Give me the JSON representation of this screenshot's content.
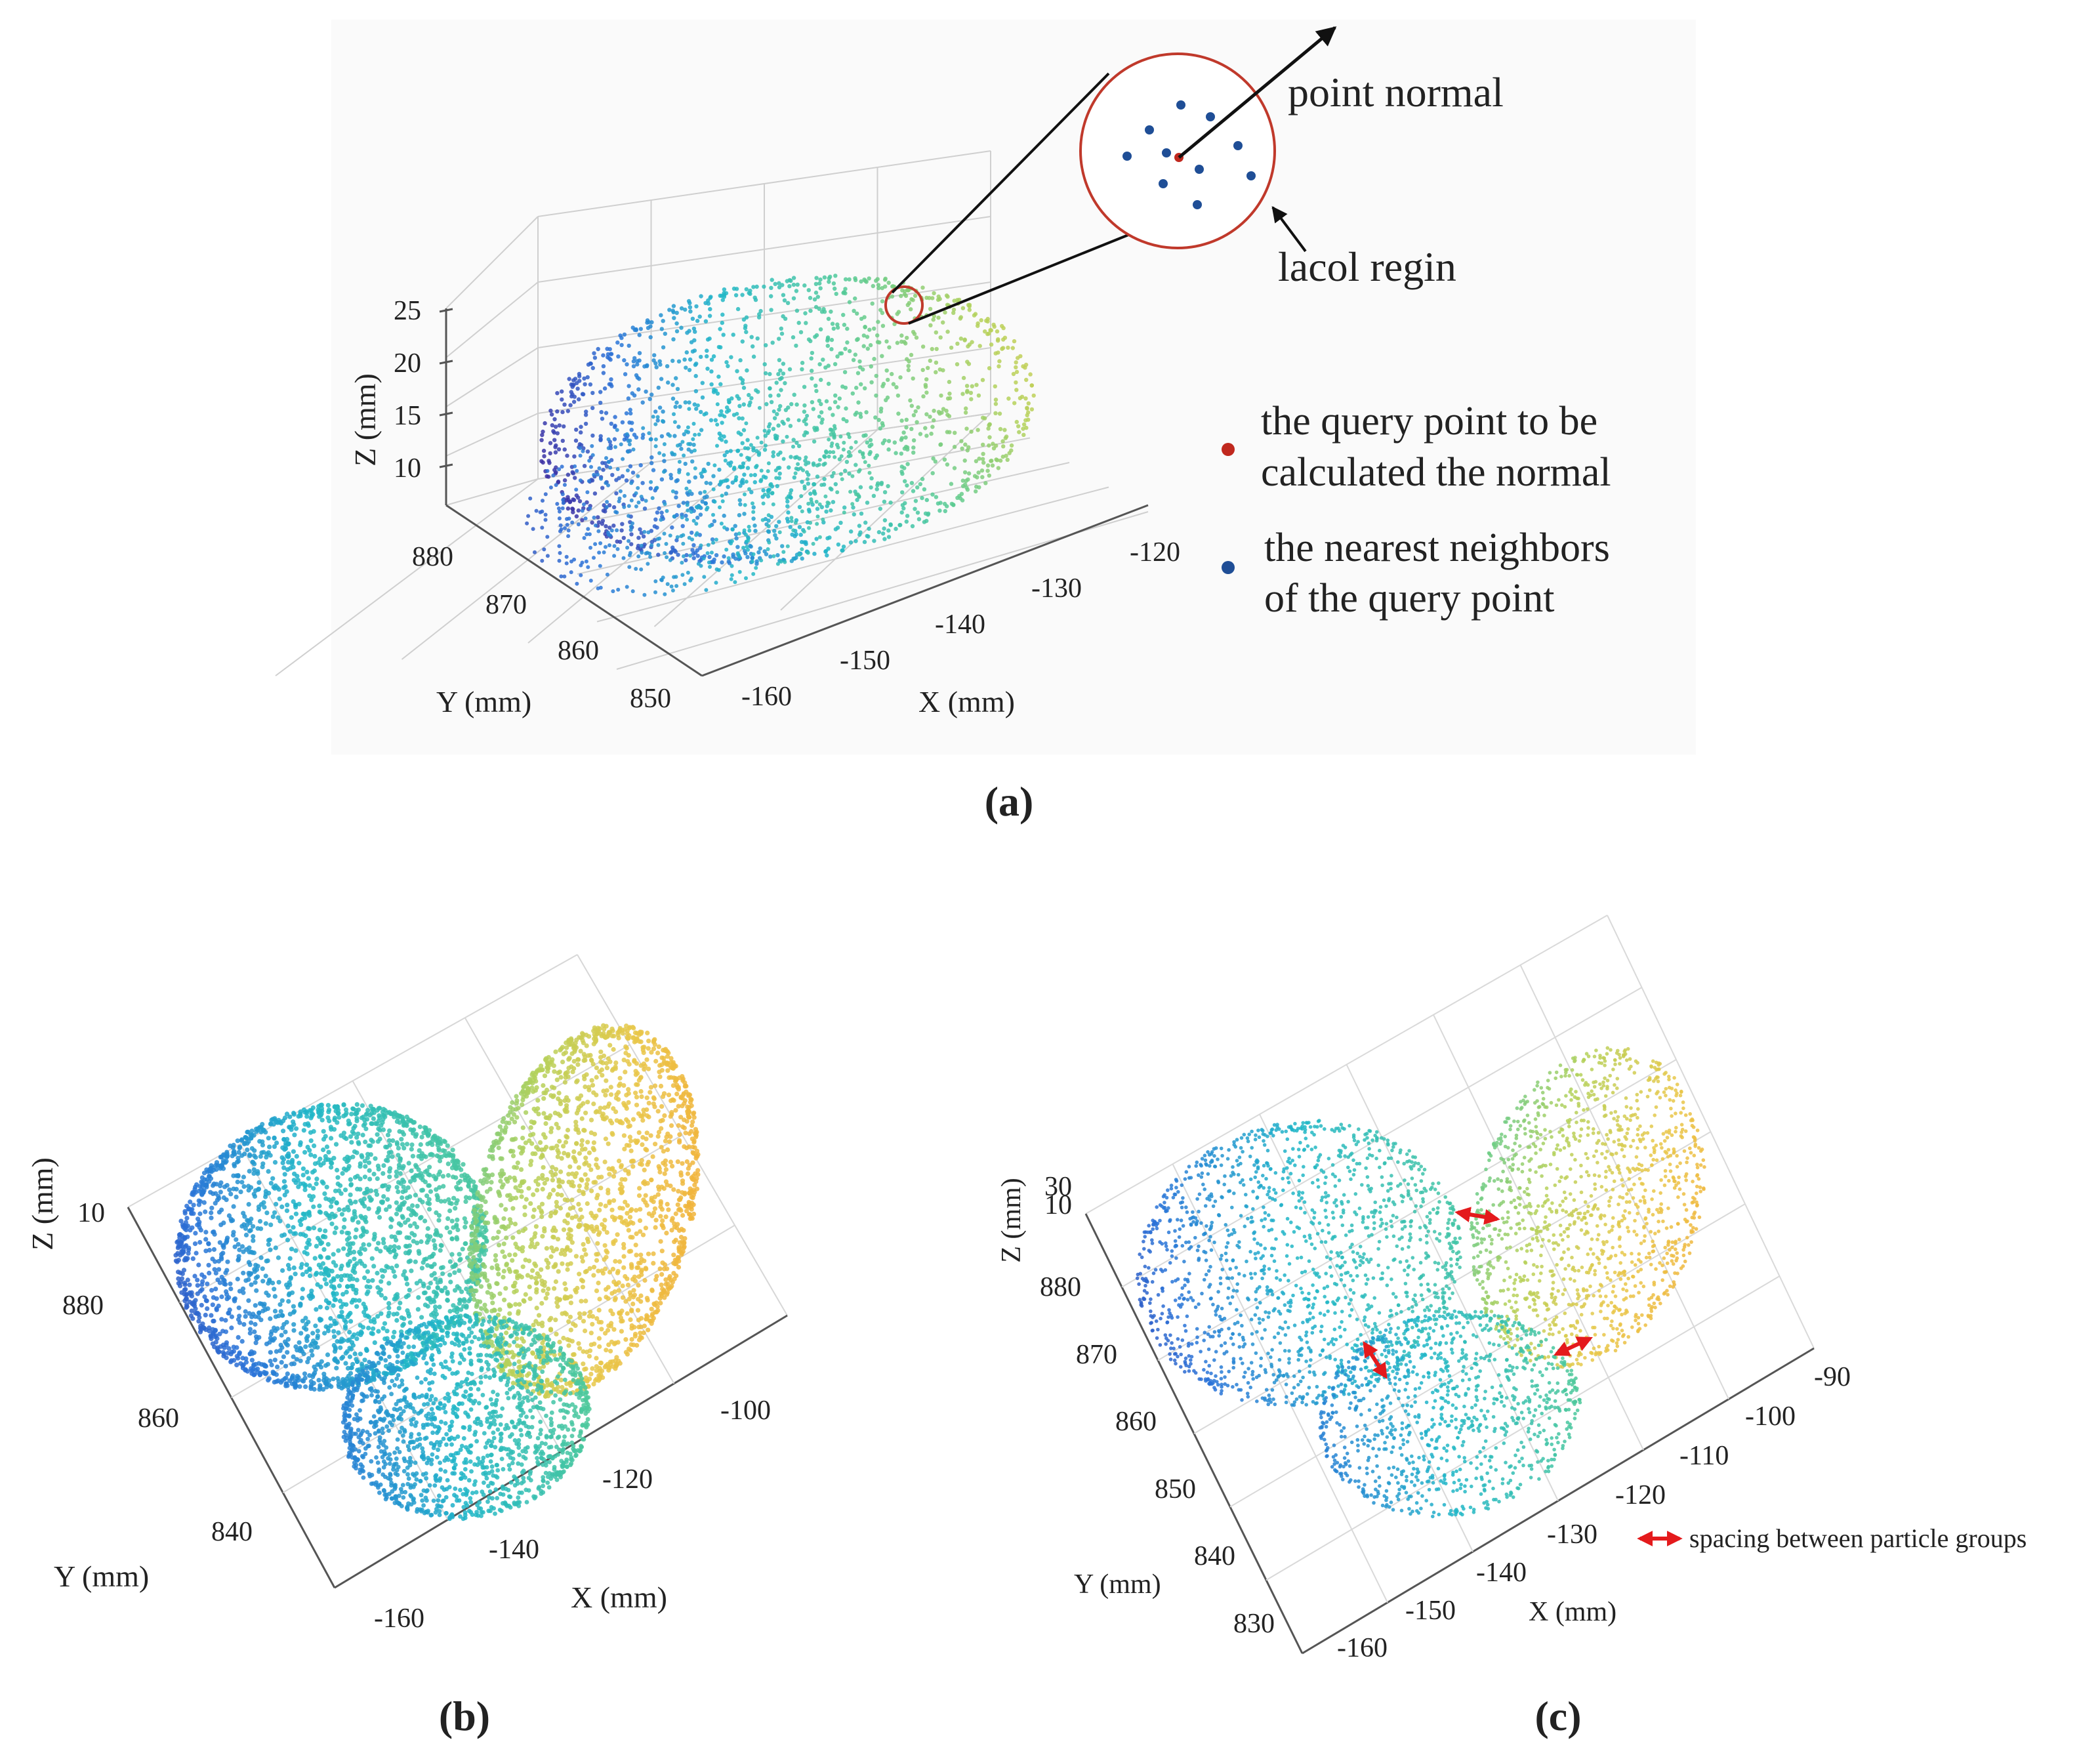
{
  "figure": {
    "panel_labels": [
      "(a)",
      "(b)",
      "(c)"
    ],
    "colors": {
      "query_point": "#c0281e",
      "neighbor_point": "#1f4e96",
      "local_region_circle": "#c0392b",
      "spacing_arrow": "#e41a1c",
      "colormap": [
        "#3b2fa3",
        "#2a73d8",
        "#20b6c8",
        "#4ec99a",
        "#b5d15a",
        "#e8c84a",
        "#f2b23a"
      ]
    }
  },
  "chart_data": [
    {
      "panel": "(a)",
      "type": "scatter",
      "kind": "3d point cloud",
      "xlabel": "X (mm)",
      "ylabel": "Y (mm)",
      "zlabel": "Z (mm)",
      "x_ticks": [
        "-160",
        "-150",
        "-140",
        "-130",
        "-120"
      ],
      "y_ticks": [
        "850",
        "860",
        "870",
        "880"
      ],
      "z_ticks": [
        "10",
        "15",
        "20",
        "25"
      ],
      "xlim": [
        -165,
        -115
      ],
      "ylim": [
        845,
        885
      ],
      "zlim": [
        8,
        26
      ],
      "grid": true,
      "callout": {
        "normal_label": "point normal",
        "region_label": "lacol  regin"
      },
      "legend": [
        {
          "marker": "query_point",
          "lines": [
            "the query point to be",
            "calculated the normal"
          ]
        },
        {
          "marker": "neighbor_point",
          "lines": [
            "the nearest neighbors",
            "of the query point"
          ]
        }
      ]
    },
    {
      "panel": "(b)",
      "type": "scatter",
      "kind": "3d point cloud, top view",
      "xlabel": "X (mm)",
      "ylabel": "Y (mm)",
      "zlabel": "Z (mm)",
      "x_ticks": [
        "-160",
        "-140",
        "-120",
        "-100"
      ],
      "y_ticks": [
        "840",
        "860",
        "880"
      ],
      "z_ticks": [
        "10"
      ],
      "xlim": [
        -165,
        -95
      ],
      "ylim": [
        835,
        890
      ],
      "grid": true
    },
    {
      "panel": "(c)",
      "type": "scatter",
      "kind": "3d point cloud, top view",
      "xlabel": "X (mm)",
      "ylabel": "Y (mm)",
      "zlabel": "Z (mm)",
      "x_ticks": [
        "-160",
        "-150",
        "-140",
        "-130",
        "-120",
        "-110",
        "-100",
        "-90"
      ],
      "y_ticks": [
        "830",
        "840",
        "850",
        "860",
        "870",
        "880"
      ],
      "z_ticks": [
        "10",
        "30"
      ],
      "xlim": [
        -165,
        -85
      ],
      "ylim": [
        825,
        890
      ],
      "grid": true,
      "legend": [
        {
          "marker": "spacing_arrow",
          "label": "spacing between particle groups"
        }
      ]
    }
  ]
}
